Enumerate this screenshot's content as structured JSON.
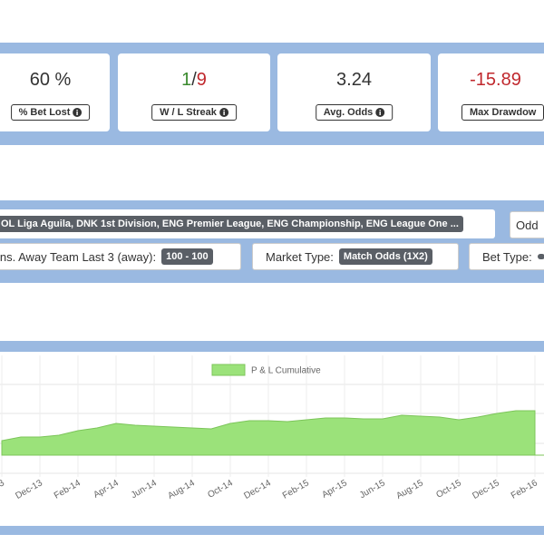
{
  "stats": [
    {
      "value": "60 %",
      "label": "% Bet Lost"
    },
    {
      "wins": "1",
      "separator": "/",
      "losses": "9",
      "label": "W / L Streak"
    },
    {
      "value": "3.24",
      "label": "Avg. Odds"
    },
    {
      "value": "-15.89",
      "label": "Max Drawdow"
    }
  ],
  "filters": {
    "leagues": "OL Liga Aguila, DNK 1st Division, ENG Premier League, ENG Championship, ENG League One ...",
    "odds": "Odd",
    "away_label": "ins. Away Team Last 3 (away):",
    "away_value": "100 - 100",
    "market_label": "Market Type:",
    "market_value": "Match Odds (1X2)",
    "bet_label": "Bet Type:"
  },
  "chart_data": {
    "type": "area",
    "categories": [
      "3",
      null,
      "Dec-13",
      null,
      "Feb-14",
      null,
      "Apr-14",
      null,
      "Jun-14",
      null,
      "Aug-14",
      null,
      "Oct-14",
      null,
      "Dec-14",
      null,
      "Feb-15",
      null,
      "Apr-15",
      null,
      "Jun-15",
      null,
      "Aug-15",
      null,
      "Oct-15",
      null,
      "Dec-15",
      null,
      "Feb-16"
    ],
    "series": [
      {
        "name": "P & L Cumulative",
        "color": "#9be27a",
        "values": [
          16,
          20,
          20,
          22,
          27,
          30,
          35,
          33,
          32,
          31,
          30,
          29,
          35,
          38,
          38,
          37,
          39,
          41,
          41,
          40,
          40,
          44,
          43,
          42,
          39,
          42,
          46,
          49,
          49
        ]
      }
    ],
    "ylim": [
      -20,
      110
    ],
    "grid": true
  }
}
